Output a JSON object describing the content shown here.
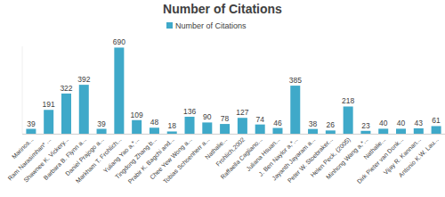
{
  "chart_data": {
    "type": "bar",
    "title": "Number of Citations",
    "series": [
      {
        "name": "Number of Citations",
        "color": "#3fa9c9",
        "values": [
          39,
          191,
          322,
          392,
          39,
          690,
          109,
          48,
          18,
          136,
          90,
          78,
          127,
          74,
          46,
          385,
          38,
          26,
          218,
          23,
          40,
          40,
          43,
          61
        ]
      }
    ],
    "categories": [
      "Marinos...",
      "Ram Narasimhan* ...",
      "Shawnee K. Vickery...",
      "Barbara B. Flynn a...",
      "Daniel Prajogo a...",
      "Markham T. Frohlich...",
      "Yuliang Yao a,*...",
      "Tingdong Zhang b...",
      "Prabir K. Bagchi and...",
      "Chee Yew Wong a...",
      "Tobias Schoenherr a...",
      "Nathalie...",
      "Frohlich,2002",
      "Raffaella Cagliano...",
      "Juliana Hsuan...",
      "J. Ben Naylor a,*...",
      "Jayanth Jayaram a...",
      "Peter W. Stoebraker...",
      "Helen Peck, (2005)",
      "Minhong Wang a,*...",
      "Nathalie...",
      "Dirk Pieter van Donk...",
      "Vijay R. Kannan...",
      "Antonio K.W. Lau..."
    ],
    "ylim": [
      0,
      700
    ],
    "data_labels": true,
    "tick_labels": "x",
    "legend": "top"
  }
}
